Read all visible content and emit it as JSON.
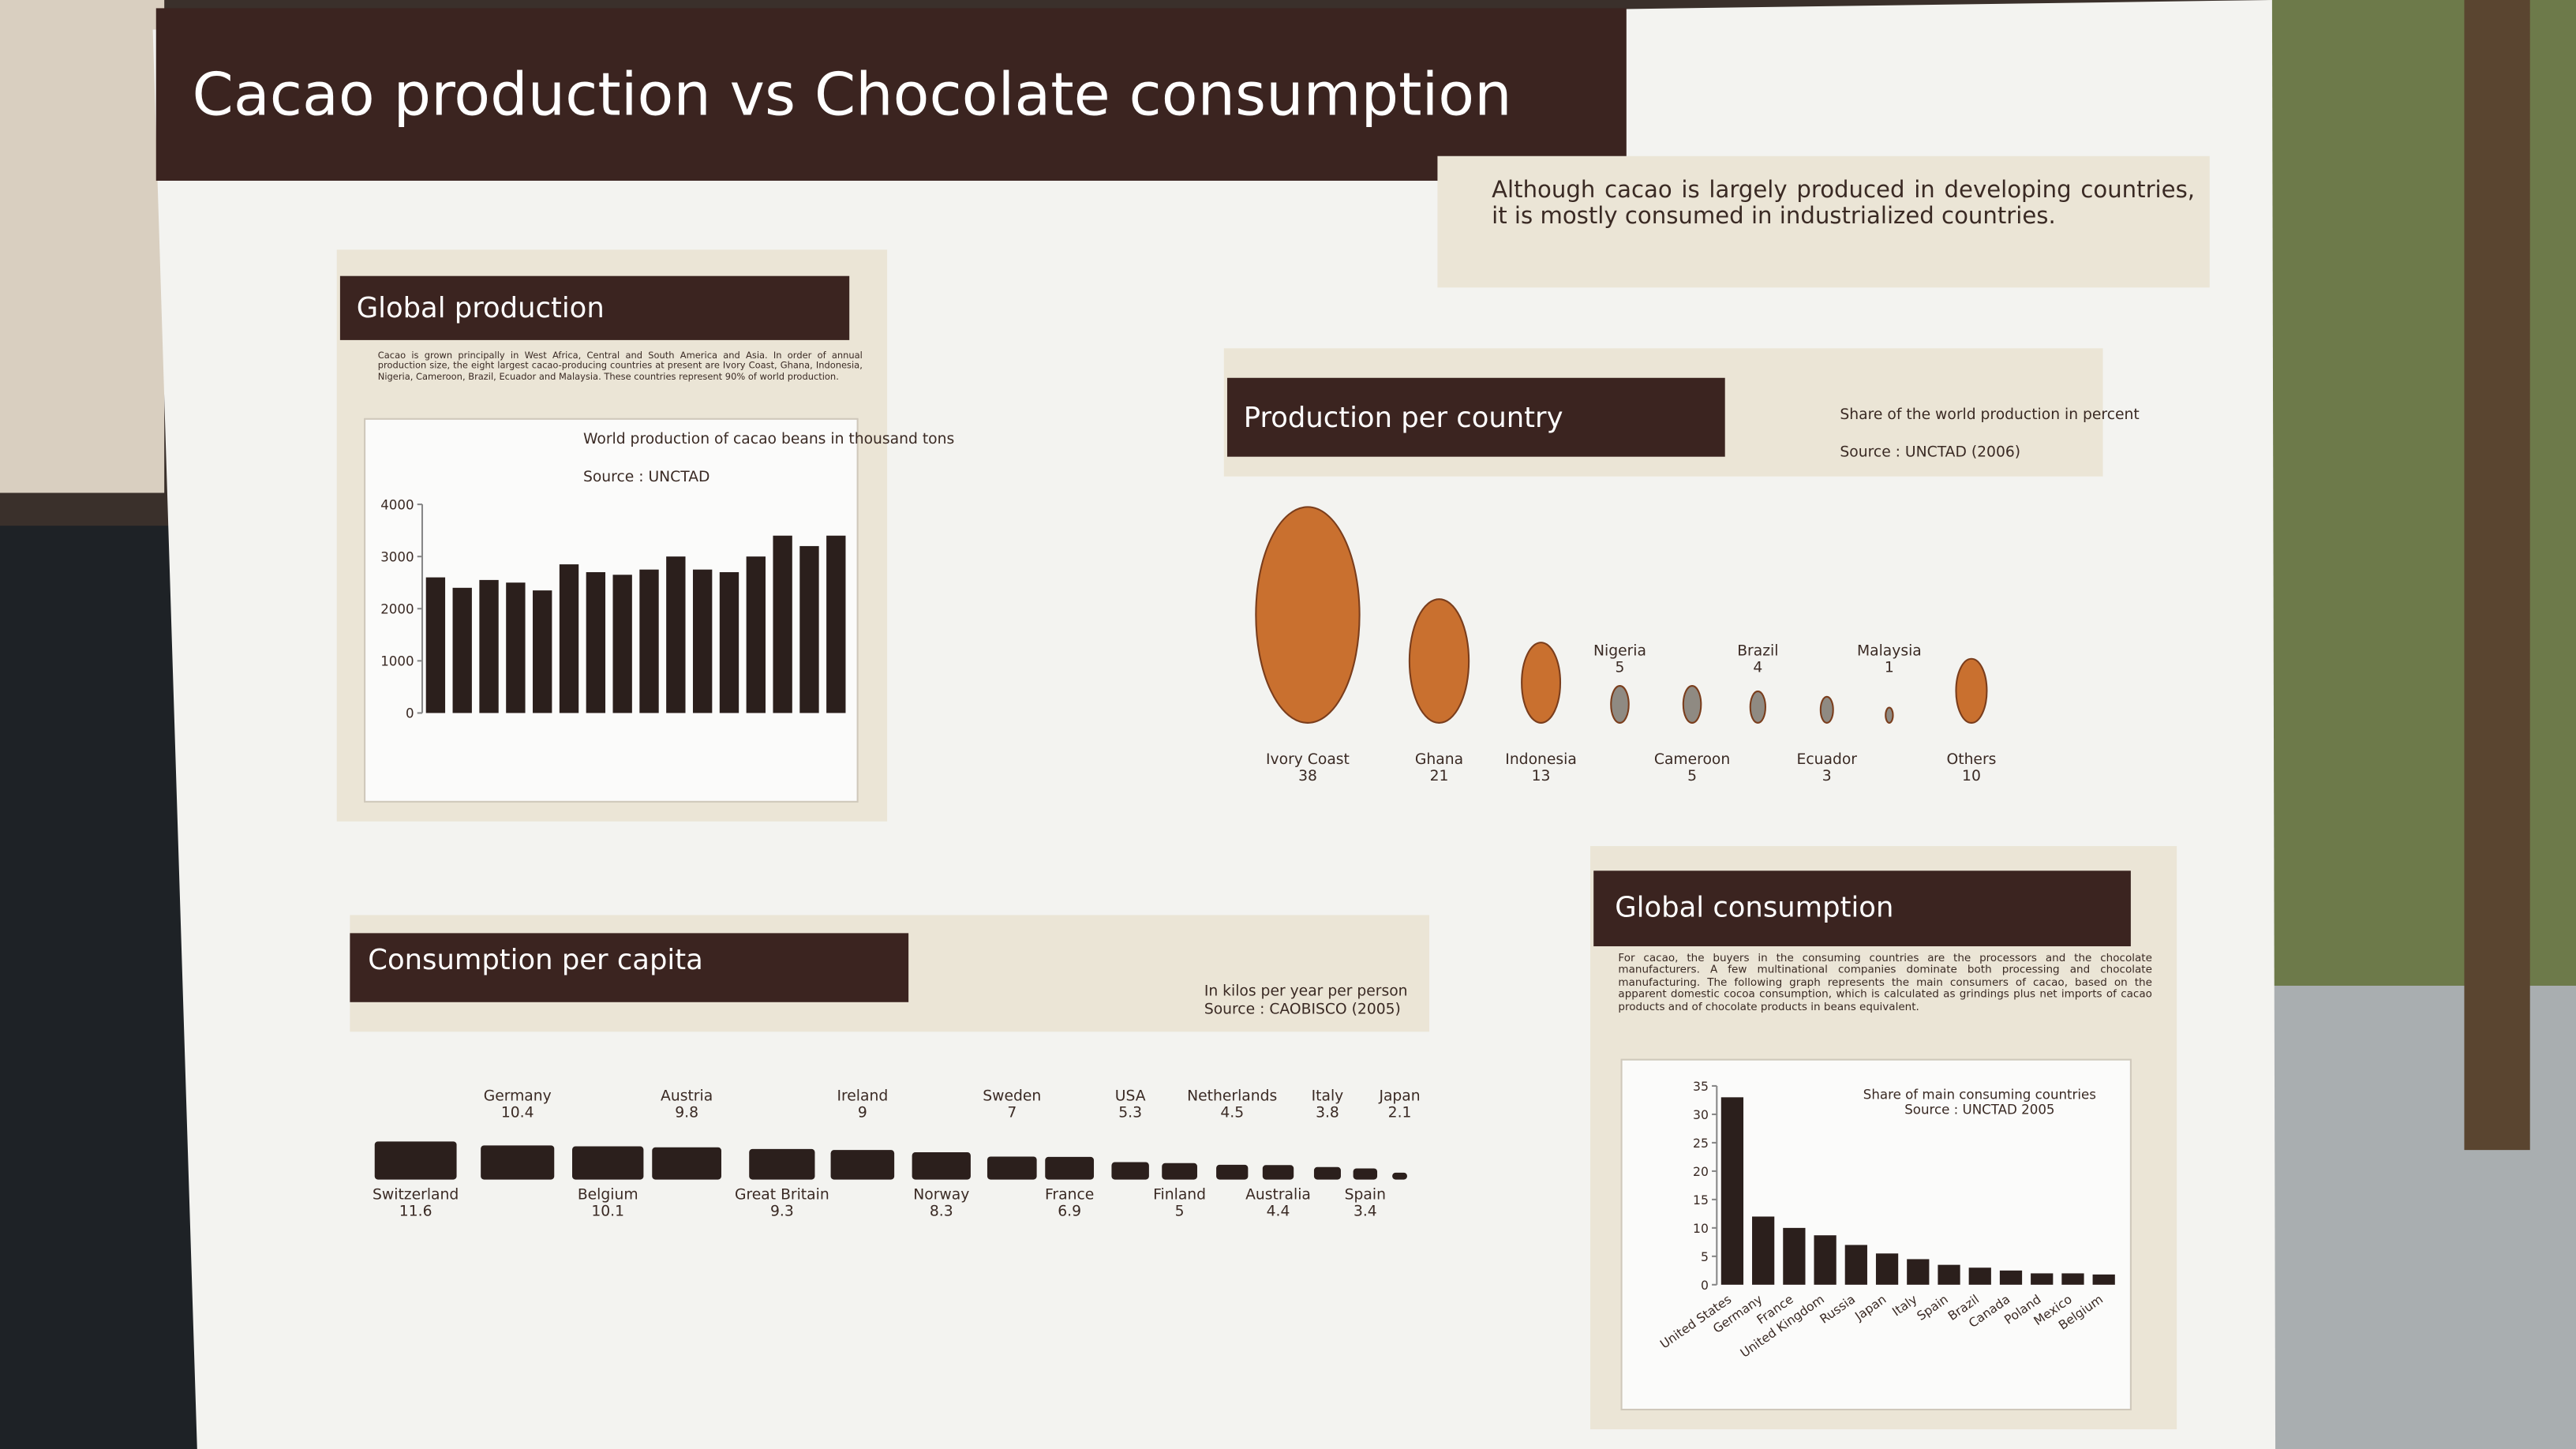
{
  "title": "Cacao production vs Chocolate consumption",
  "intro": "Although cacao is largely produced in developing countries, it is mostly consumed in industrialized countries.",
  "global_production": {
    "heading": "Global production",
    "text": "Cacao is grown principally in West Africa, Central and South America and Asia. In order of annual production size, the eight largest cacao-producing countries at present are Ivory Coast, Ghana, Indonesia, Nigeria, Cameroon, Brazil, Ecuador and Malaysia. These countries represent 90% of world production.",
    "chart": {
      "type": "bar",
      "title": "World production of cacao beans in thousand tons",
      "source": "Source : UNCTAD",
      "values": [
        2600,
        2400,
        2550,
        2500,
        2350,
        2850,
        2700,
        2650,
        2750,
        3000,
        2750,
        2700,
        3000,
        3400,
        3200,
        3400
      ],
      "color": "#2b1f1c",
      "ylim": [
        0,
        4000
      ],
      "yticks": [
        0,
        1000,
        2000,
        3000,
        4000
      ]
    }
  },
  "production_per_country": {
    "heading": "Production per country",
    "note": "Share of the world production in percent",
    "source": "Source : UNCTAD (2006)",
    "countries": [
      {
        "name": "Ivory Coast",
        "share": 38
      },
      {
        "name": "Ghana",
        "share": 21
      },
      {
        "name": "Indonesia",
        "share": 13
      },
      {
        "name": "Nigeria",
        "share": 5
      },
      {
        "name": "Cameroon",
        "share": 5
      },
      {
        "name": "Brazil",
        "share": 4
      },
      {
        "name": "Ecuador",
        "share": 3
      },
      {
        "name": "Malaysia",
        "share": 1
      },
      {
        "name": "Others",
        "share": 10
      }
    ]
  },
  "consumption_per_capita": {
    "heading": "Consumption per capita",
    "note": "In kilos per year per person",
    "source": "Source : CAOBISCO (2005)",
    "countries": [
      {
        "name": "Switzerland",
        "kilos": 11.6
      },
      {
        "name": "Germany",
        "kilos": 10.4
      },
      {
        "name": "Belgium",
        "kilos": 10.1
      },
      {
        "name": "Austria",
        "kilos": 9.8
      },
      {
        "name": "Great Britain",
        "kilos": 9.3
      },
      {
        "name": "Ireland",
        "kilos": 9
      },
      {
        "name": "Norway",
        "kilos": 8.3
      },
      {
        "name": "Sweden",
        "kilos": 7
      },
      {
        "name": "France",
        "kilos": 6.9
      },
      {
        "name": "USA",
        "kilos": 5.3
      },
      {
        "name": "Finland",
        "kilos": 5
      },
      {
        "name": "Netherlands",
        "kilos": 4.5
      },
      {
        "name": "Australia",
        "kilos": 4.4
      },
      {
        "name": "Italy",
        "kilos": 3.8
      },
      {
        "name": "Spain",
        "kilos": 3.4
      },
      {
        "name": "Japan",
        "kilos": 2.1
      }
    ]
  },
  "global_consumption": {
    "heading": "Global consumption",
    "text": "For cacao, the buyers in the consuming countries are the processors and the chocolate manufacturers. A few multinational companies dominate both processing and chocolate manufacturing. The following graph represents the main consumers of cacao, based on the apparent domestic cocoa consumption, which is calculated as grindings plus net imports of cacao products and of chocolate products in beans equivalent.",
    "chart": {
      "type": "bar",
      "title": "Share of main consuming countries",
      "source": "Source : UNCTAD 2005",
      "categories": [
        "United States",
        "Germany",
        "France",
        "United Kingdom",
        "Russia",
        "Japan",
        "Italy",
        "Spain",
        "Brazil",
        "Canada",
        "Poland",
        "Mexico",
        "Belgium"
      ],
      "values": [
        33,
        12,
        10,
        8.7,
        7,
        5.5,
        4.5,
        3.5,
        3,
        2.5,
        2,
        2,
        1.8
      ],
      "color": "#2b1f1c",
      "ylim": [
        0,
        35
      ],
      "yticks": [
        0,
        5,
        10,
        15,
        20,
        25,
        30,
        35
      ]
    }
  }
}
